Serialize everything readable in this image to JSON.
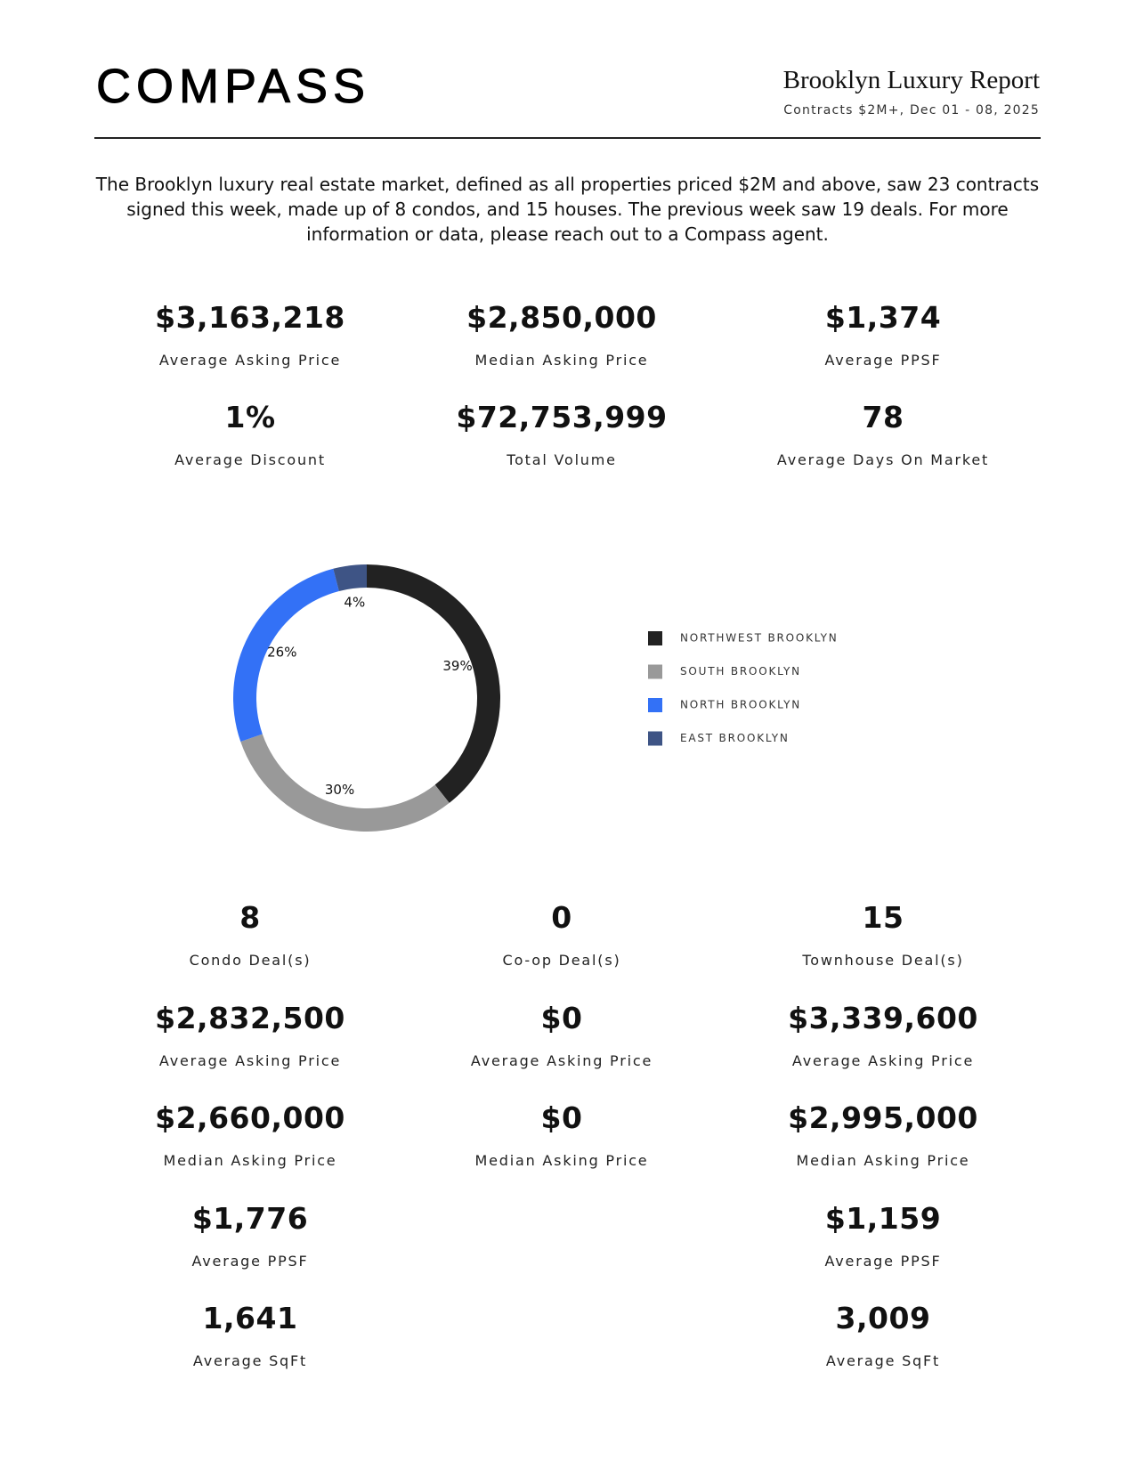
{
  "header": {
    "logo": "COMPASS",
    "title": "Brooklyn Luxury Report",
    "subtitle": "Contracts $2M+, Dec 01 - 08, 2025"
  },
  "intro": "The Brooklyn luxury real estate market, defined as all properties priced $2M and above, saw 23 contracts signed this week, made up of 8 condos, and 15 houses. The previous week saw 19 deals. For more information or data, please reach out to a Compass agent.",
  "summary": [
    {
      "value": "$3,163,218",
      "label": "Average Asking Price"
    },
    {
      "value": "$2,850,000",
      "label": "Median Asking Price"
    },
    {
      "value": "$1,374",
      "label": "Average PPSF"
    },
    {
      "value": "1%",
      "label": "Average Discount"
    },
    {
      "value": "$72,753,999",
      "label": "Total Volume"
    },
    {
      "value": "78",
      "label": "Average Days On Market"
    }
  ],
  "chart_data": {
    "type": "donut",
    "categories": [
      "NORTHWEST BROOKLYN",
      "SOUTH BROOKLYN",
      "NORTH BROOKLYN",
      "EAST BROOKLYN"
    ],
    "values": [
      39,
      30,
      26,
      4
    ],
    "value_labels": [
      "39%",
      "30%",
      "26%",
      "4%"
    ],
    "colors": [
      "#222222",
      "#999999",
      "#3371f6",
      "#3e5485"
    ]
  },
  "columns": [
    {
      "stats": [
        {
          "value": "8",
          "label": "Condo Deal(s)"
        },
        {
          "value": "$2,832,500",
          "label": "Average Asking Price"
        },
        {
          "value": "$2,660,000",
          "label": "Median Asking Price"
        },
        {
          "value": "$1,776",
          "label": "Average PPSF"
        },
        {
          "value": "1,641",
          "label": "Average SqFt"
        }
      ]
    },
    {
      "stats": [
        {
          "value": "0",
          "label": "Co-op Deal(s)"
        },
        {
          "value": "$0",
          "label": "Average Asking Price"
        },
        {
          "value": "$0",
          "label": "Median Asking Price"
        }
      ]
    },
    {
      "stats": [
        {
          "value": "15",
          "label": "Townhouse Deal(s)"
        },
        {
          "value": "$3,339,600",
          "label": "Average Asking Price"
        },
        {
          "value": "$2,995,000",
          "label": "Median Asking Price"
        },
        {
          "value": "$1,159",
          "label": "Average PPSF"
        },
        {
          "value": "3,009",
          "label": "Average SqFt"
        }
      ]
    }
  ]
}
